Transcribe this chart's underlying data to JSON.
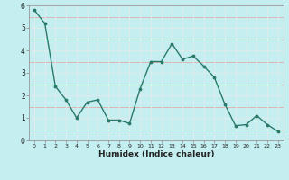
{
  "x": [
    0,
    1,
    2,
    3,
    4,
    5,
    6,
    7,
    8,
    9,
    10,
    11,
    12,
    13,
    14,
    15,
    16,
    17,
    18,
    19,
    20,
    21,
    22,
    23
  ],
  "y": [
    5.8,
    5.2,
    2.4,
    1.8,
    1.0,
    1.7,
    1.8,
    0.9,
    0.9,
    0.75,
    2.3,
    3.5,
    3.5,
    4.3,
    3.6,
    3.75,
    3.3,
    2.8,
    1.6,
    0.65,
    0.7,
    1.1,
    0.7,
    0.4
  ],
  "xlabel": "Humidex (Indice chaleur)",
  "ylim": [
    0,
    6.0
  ],
  "xlim": [
    -0.5,
    23.5
  ],
  "line_color": "#2a7a6a",
  "bg_color": "#c5eef0",
  "grid_red_color": "#e8a0a0",
  "grid_white_color": "#ddf5f5",
  "spine_color": "#888888"
}
